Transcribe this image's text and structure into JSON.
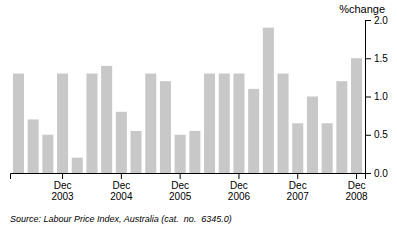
{
  "chart_data": {
    "type": "bar",
    "ylabel": "%change",
    "annotations": [
      "Source: Labour Price Index, Australia (cat.  no.  6345.0)"
    ],
    "categories": [
      null,
      null,
      null,
      "Dec\n2003",
      null,
      null,
      null,
      "Dec\n2004",
      null,
      null,
      null,
      "Dec\n2005",
      null,
      null,
      null,
      "Dec\n2006",
      null,
      null,
      null,
      "Dec\n2007",
      null,
      null,
      null,
      "Dec\n2008"
    ],
    "values": [
      1.3,
      0.7,
      0.5,
      1.3,
      0.2,
      1.3,
      1.4,
      0.8,
      0.55,
      1.3,
      1.2,
      0.5,
      0.55,
      1.3,
      1.3,
      1.3,
      1.1,
      1.9,
      1.3,
      0.65,
      1.0,
      0.65,
      1.2,
      1.5
    ],
    "color": "#c8c8c8",
    "ylim": [
      0,
      2.0
    ],
    "yticks": [
      {
        "value": 0,
        "label": "0.0"
      },
      0.5,
      {
        "value": 1.0,
        "label": "1.0"
      },
      1.5,
      {
        "value": 2.0,
        "label": "2.0"
      }
    ],
    "grid": false
  }
}
